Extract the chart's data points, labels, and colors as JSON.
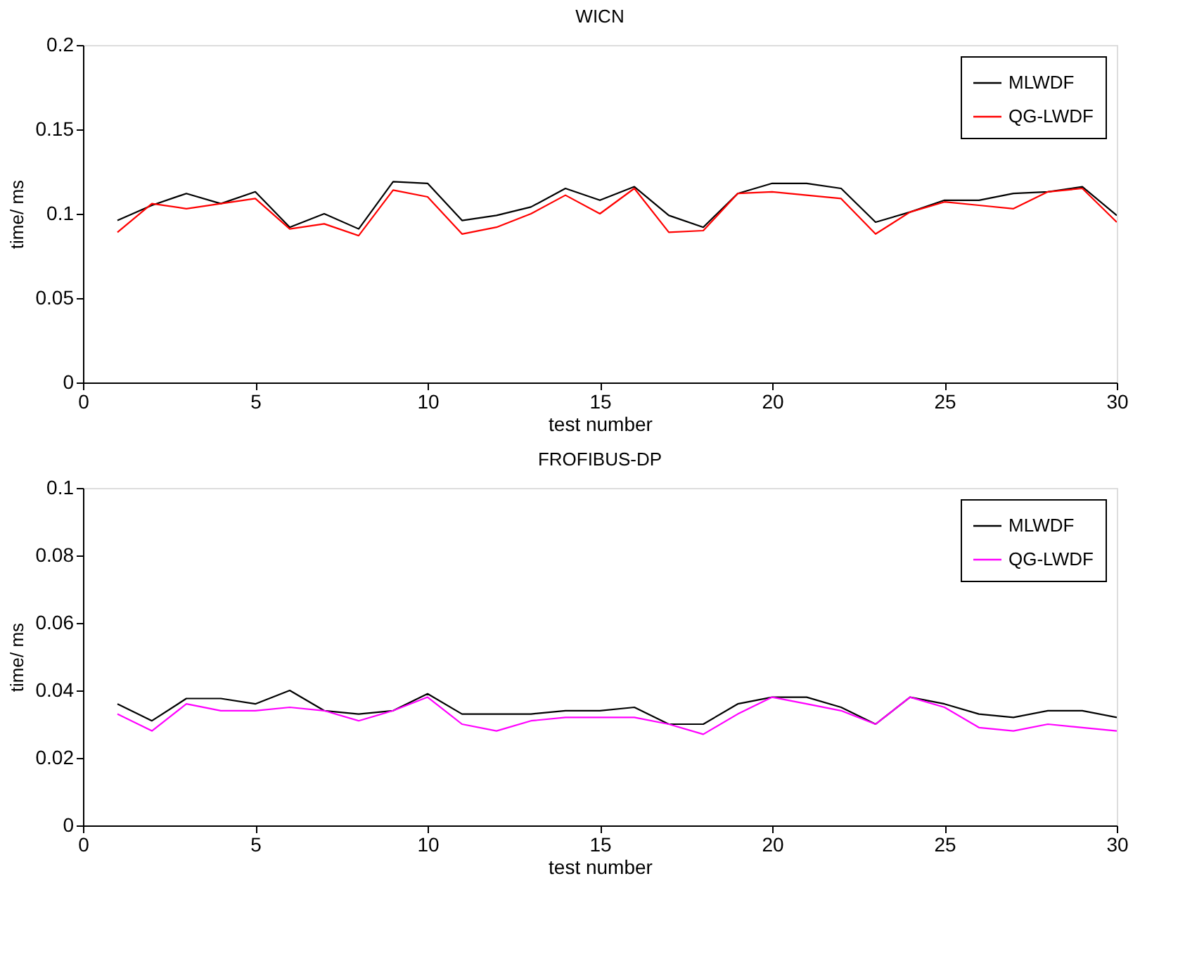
{
  "chart_data": [
    {
      "type": "line",
      "title": "WICN",
      "xlabel": "test number",
      "ylabel": "time/ ms",
      "x": [
        1,
        2,
        3,
        4,
        5,
        6,
        7,
        8,
        9,
        10,
        11,
        12,
        13,
        14,
        15,
        16,
        17,
        18,
        19,
        20,
        21,
        22,
        23,
        24,
        25,
        26,
        27,
        28,
        29,
        30
      ],
      "series": [
        {
          "name": "MLWDF",
          "color": "#000000",
          "values": [
            0.096,
            0.105,
            0.112,
            0.106,
            0.113,
            0.092,
            0.1,
            0.091,
            0.119,
            0.118,
            0.096,
            0.099,
            0.104,
            0.115,
            0.108,
            0.116,
            0.099,
            0.092,
            0.112,
            0.118,
            0.118,
            0.115,
            0.095,
            0.101,
            0.108,
            0.108,
            0.112,
            0.113,
            0.116,
            0.099
          ]
        },
        {
          "name": "QG-LWDF",
          "color": "#ff0000",
          "values": [
            0.089,
            0.106,
            0.103,
            0.106,
            0.109,
            0.091,
            0.094,
            0.087,
            0.114,
            0.11,
            0.088,
            0.092,
            0.1,
            0.111,
            0.1,
            0.115,
            0.089,
            0.09,
            0.112,
            0.113,
            0.111,
            0.109,
            0.088,
            0.101,
            0.107,
            0.105,
            0.103,
            0.113,
            0.115,
            0.095
          ]
        }
      ],
      "xlim": [
        0,
        30
      ],
      "xticks": [
        0,
        5,
        10,
        15,
        20,
        25,
        30
      ],
      "ylim": [
        0,
        0.2
      ],
      "yticks": [
        0,
        0.05,
        0.1,
        0.15,
        0.2
      ],
      "grid": false,
      "legend": "top right",
      "marker": "none",
      "line_style": "solid"
    },
    {
      "type": "line",
      "title": "FROFIBUS-DP",
      "xlabel": "test number",
      "ylabel": "time/ ms",
      "x": [
        1,
        2,
        3,
        4,
        5,
        6,
        7,
        8,
        9,
        10,
        11,
        12,
        13,
        14,
        15,
        16,
        17,
        18,
        19,
        20,
        21,
        22,
        23,
        24,
        25,
        26,
        27,
        28,
        29,
        30
      ],
      "series": [
        {
          "name": "MLWDF",
          "color": "#000000",
          "values": [
            0.036,
            0.031,
            0.0376,
            0.0376,
            0.036,
            0.04,
            0.034,
            0.033,
            0.034,
            0.039,
            0.033,
            0.033,
            0.033,
            0.034,
            0.034,
            0.035,
            0.03,
            0.03,
            0.036,
            0.038,
            0.038,
            0.035,
            0.03,
            0.038,
            0.036,
            0.033,
            0.032,
            0.034,
            0.034,
            0.032
          ]
        },
        {
          "name": "QG-LWDF",
          "color": "#ff00ff",
          "values": [
            0.033,
            0.028,
            0.036,
            0.034,
            0.034,
            0.035,
            0.034,
            0.031,
            0.034,
            0.038,
            0.03,
            0.028,
            0.031,
            0.032,
            0.032,
            0.032,
            0.03,
            0.027,
            0.033,
            0.038,
            0.036,
            0.034,
            0.03,
            0.038,
            0.035,
            0.029,
            0.028,
            0.03,
            0.029,
            0.028
          ]
        }
      ],
      "xlim": [
        0,
        30
      ],
      "xticks": [
        0,
        5,
        10,
        15,
        20,
        25,
        30
      ],
      "ylim": [
        0,
        0.1
      ],
      "yticks": [
        0,
        0.02,
        0.04,
        0.06,
        0.08,
        0.1
      ],
      "grid": false,
      "legend": "top right",
      "marker": "none",
      "line_style": "solid"
    }
  ]
}
